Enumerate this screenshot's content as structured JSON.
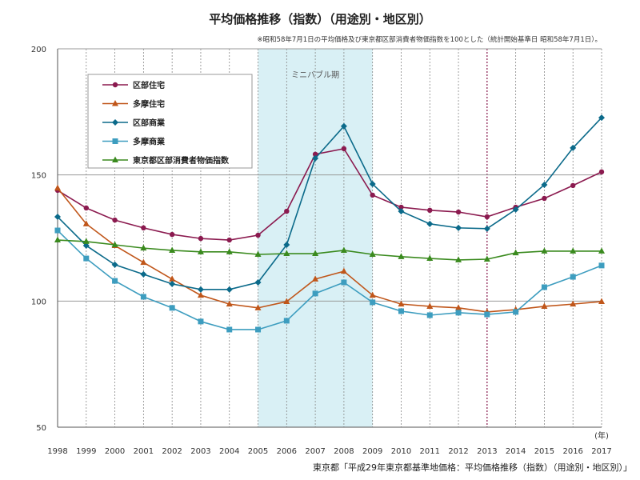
{
  "chart_data": {
    "type": "line",
    "title": "平均価格推移（指数）（用途別・地区別）",
    "note": "※昭和58年7月1日の平均価格及び東京都区部消費者物価指数を100とした（統計開始基準日 昭和58年7月1日）。",
    "source": "東京都「平成29年東京都基準地価格：平均価格推移（指数）（用途別・地区別）」",
    "x_unit": "(年)",
    "x": [
      1998,
      1999,
      2000,
      2001,
      2002,
      2003,
      2004,
      2005,
      2006,
      2007,
      2008,
      2009,
      2010,
      2011,
      2012,
      2013,
      2014,
      2015,
      2016,
      2017
    ],
    "ylim": [
      50,
      200
    ],
    "yticks": [
      50,
      100,
      150,
      200
    ],
    "grid": "horizontal at 100 and 150; vertical dotted at each year",
    "legend": "top-left",
    "shaded_region": {
      "label": "ミニバブル期",
      "from": 2005,
      "to": 2009,
      "color": "#d9f0f5"
    },
    "marker_line": {
      "x": 2013,
      "color": "#8b1a4f"
    },
    "series": [
      {
        "name": "区部住宅",
        "color": "#8b1a4f",
        "marker": "circle",
        "values": [
          143.9,
          136.9,
          132.1,
          129.0,
          126.4,
          124.8,
          124.2,
          126.1,
          135.6,
          158.2,
          160.4,
          142.0,
          137.2,
          136.0,
          135.3,
          133.4,
          137.2,
          140.7,
          145.8,
          151.2
        ]
      },
      {
        "name": "多摩住宅",
        "color": "#c0561a",
        "marker": "triangle",
        "values": [
          144.8,
          130.6,
          122.0,
          115.3,
          108.7,
          102.3,
          98.8,
          97.3,
          99.8,
          108.7,
          111.8,
          102.3,
          98.8,
          97.9,
          97.3,
          95.7,
          96.6,
          97.9,
          98.8,
          99.8
        ]
      },
      {
        "name": "区部商業",
        "color": "#0b6a8a",
        "marker": "diamond",
        "values": [
          133.4,
          122.0,
          114.4,
          110.6,
          106.8,
          104.6,
          104.6,
          107.4,
          122.3,
          156.6,
          169.3,
          146.4,
          135.6,
          130.6,
          129.0,
          128.7,
          136.3,
          146.1,
          160.7,
          172.7
        ]
      },
      {
        "name": "多摩商業",
        "color": "#3d9dbf",
        "marker": "square",
        "values": [
          128.0,
          116.9,
          108.0,
          101.7,
          97.3,
          91.9,
          88.7,
          88.7,
          92.2,
          103.0,
          107.4,
          99.5,
          96.0,
          94.4,
          95.4,
          94.7,
          95.7,
          105.5,
          109.6,
          114.1
        ]
      },
      {
        "name": "東京都区部消費者物価指数",
        "color": "#3a8a1e",
        "marker": "triangle",
        "values": [
          124.2,
          123.6,
          122.3,
          121.0,
          120.1,
          119.5,
          119.5,
          118.5,
          118.8,
          118.8,
          120.1,
          118.5,
          117.6,
          116.9,
          116.3,
          116.6,
          119.1,
          119.8,
          119.8,
          119.8
        ]
      }
    ]
  }
}
